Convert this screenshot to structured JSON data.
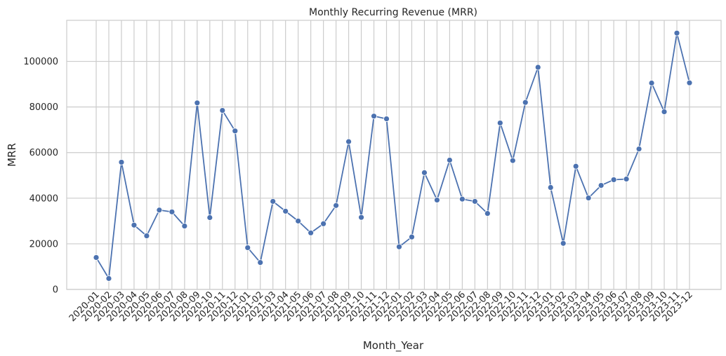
{
  "chart_data": {
    "type": "line",
    "title": "Monthly Recurring Revenue (MRR)",
    "xlabel": "Month_Year",
    "ylabel": "MRR",
    "ylim": [
      0,
      118000
    ],
    "yticks": [
      0,
      20000,
      40000,
      60000,
      80000,
      100000
    ],
    "grid": true,
    "line_color": "#4c72b0",
    "grid_color": "#cccccc",
    "categories": [
      "2020-01",
      "2020-02",
      "2020-03",
      "2020-04",
      "2020-05",
      "2020-06",
      "2020-07",
      "2020-08",
      "2020-09",
      "2020-10",
      "2020-11",
      "2020-12",
      "2021-01",
      "2021-02",
      "2021-03",
      "2021-04",
      "2021-05",
      "2021-06",
      "2021-07",
      "2021-08",
      "2021-09",
      "2021-10",
      "2021-11",
      "2021-12",
      "2022-01",
      "2022-02",
      "2022-03",
      "2022-04",
      "2022-05",
      "2022-06",
      "2022-07",
      "2022-08",
      "2022-09",
      "2022-10",
      "2022-11",
      "2022-12",
      "2023-01",
      "2023-02",
      "2023-03",
      "2023-04",
      "2023-05",
      "2023-06",
      "2023-07",
      "2023-08",
      "2023-09",
      "2023-10",
      "2023-11",
      "2023-12"
    ],
    "values": [
      14000,
      4800,
      55800,
      28200,
      23500,
      34800,
      34000,
      27800,
      81800,
      31500,
      78500,
      69500,
      18300,
      11800,
      38600,
      34300,
      30000,
      24800,
      28800,
      36800,
      64800,
      31600,
      76000,
      74800,
      18700,
      23000,
      51200,
      39200,
      56700,
      39600,
      38600,
      33300,
      73000,
      56500,
      82000,
      97400,
      44700,
      20200,
      54000,
      40100,
      45600,
      48100,
      48400,
      61600,
      90500,
      77900,
      112400,
      90600
    ]
  }
}
